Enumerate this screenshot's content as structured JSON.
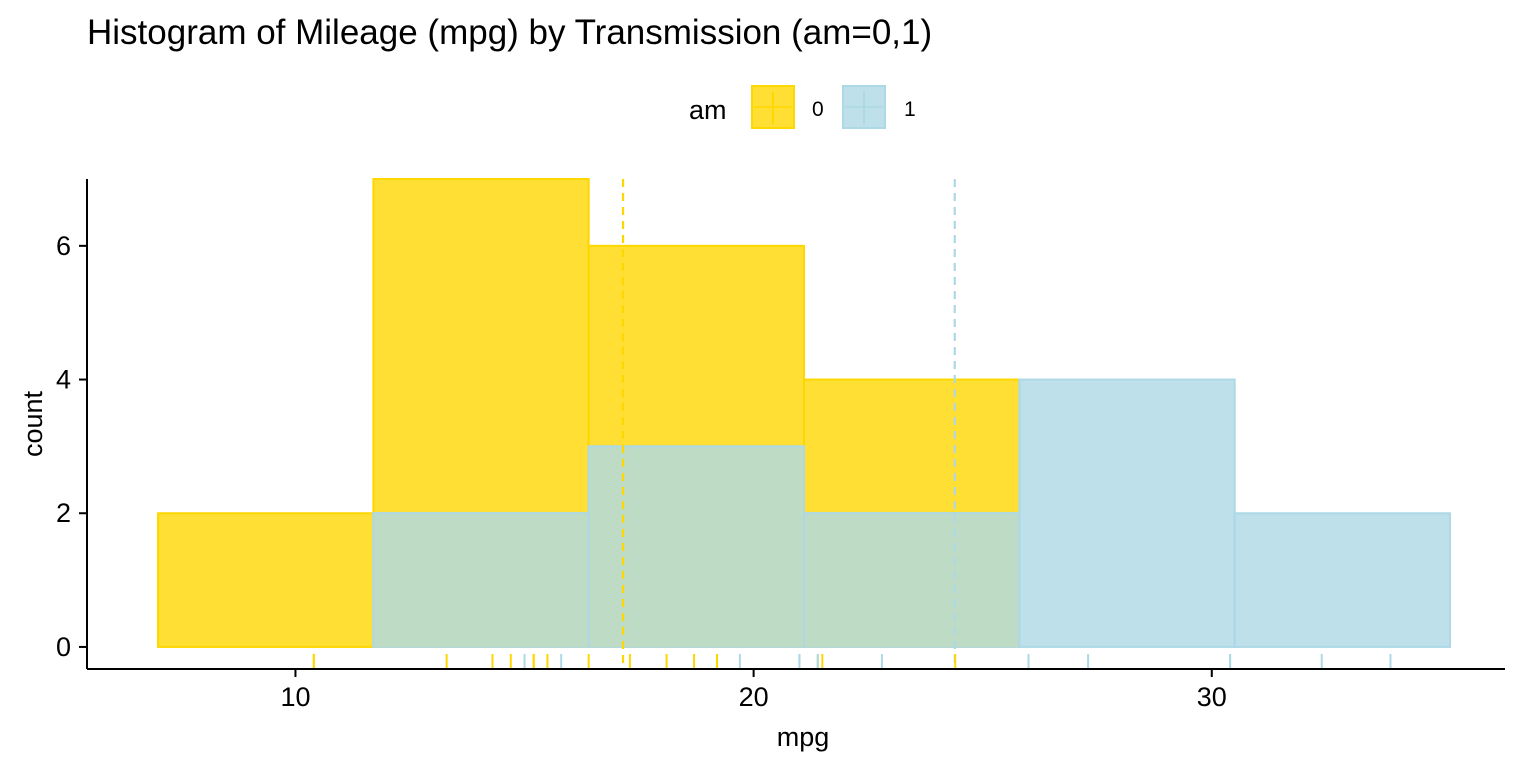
{
  "chart_data": {
    "type": "histogram",
    "title": "Histogram of Mileage (mpg) by Transmission (am=0,1)",
    "xlabel": "mpg",
    "ylabel": "count",
    "xlim": [
      5.45,
      36.4
    ],
    "ylim": [
      -0.33,
      7.0
    ],
    "xticks": [
      10,
      20,
      30
    ],
    "yticks": [
      0,
      2,
      4,
      6
    ],
    "legend": {
      "title": "am",
      "position": "top",
      "items": [
        "0",
        "1"
      ]
    },
    "bins": [
      [
        7.0,
        11.7
      ],
      [
        11.7,
        16.4
      ],
      [
        16.4,
        21.1
      ],
      [
        21.1,
        25.8
      ],
      [
        25.8,
        30.5
      ],
      [
        30.5,
        35.2
      ]
    ],
    "series": [
      {
        "name": "0",
        "fill": "#FFD700",
        "counts": [
          2,
          7,
          6,
          4,
          0,
          0
        ],
        "mean": 17.15,
        "rug": [
          10.4,
          10.4,
          13.3,
          14.3,
          14.7,
          15.2,
          15.2,
          15.5,
          16.4,
          17.3,
          18.1,
          18.7,
          19.2,
          19.2,
          21.4,
          21.5,
          24.4
        ]
      },
      {
        "name": "1",
        "fill": "#ADD8E6",
        "counts": [
          0,
          2,
          3,
          2,
          4,
          2
        ],
        "mean": 24.39,
        "rug": [
          15.0,
          15.8,
          19.7,
          21.0,
          21.0,
          21.4,
          22.8,
          26.0,
          27.3,
          30.4,
          30.4,
          32.4,
          33.9
        ]
      }
    ],
    "overlap_color": "#BEDCC5",
    "grid": false
  }
}
